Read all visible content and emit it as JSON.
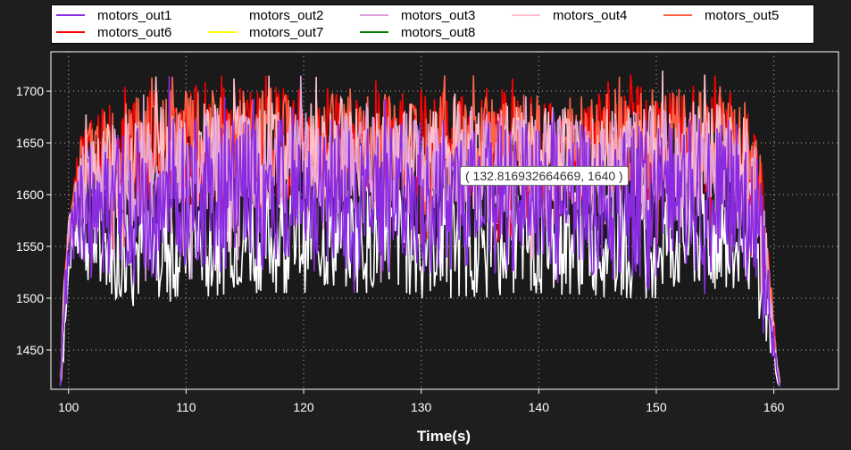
{
  "chart_data": {
    "type": "line",
    "xlabel": "Time(s)",
    "ylabel": "",
    "xlim": [
      98.5,
      165.5
    ],
    "ylim": [
      1412,
      1738
    ],
    "xticks": [
      100,
      110,
      120,
      130,
      140,
      150,
      160
    ],
    "yticks": [
      1450,
      1500,
      1550,
      1600,
      1650,
      1700
    ],
    "grid": true,
    "legend_position": "top",
    "series": [
      {
        "name": "motors_out1",
        "color": "#8a2be2"
      },
      {
        "name": "motors_out2",
        "color": "#ffffff"
      },
      {
        "name": "motors_out3",
        "color": "#dda0dd"
      },
      {
        "name": "motors_out4",
        "color": "#ffc0cb"
      },
      {
        "name": "motors_out5",
        "color": "#ff6347"
      },
      {
        "name": "motors_out6",
        "color": "#ff0000"
      },
      {
        "name": "motors_out7",
        "color": "#ffff00"
      },
      {
        "name": "motors_out8",
        "color": "#008000"
      }
    ],
    "envelope": {
      "x": [
        99.3,
        99.6,
        100.0,
        100.5,
        101.0,
        102.0,
        104.0,
        106.0,
        108.0,
        110.0,
        115.0,
        120.0,
        125.0,
        130.0,
        135.0,
        140.0,
        145.0,
        150.0,
        155.0,
        157.0,
        158.0,
        158.5,
        159.0,
        159.5,
        160.0,
        160.5
      ],
      "upper": [
        1430,
        1520,
        1580,
        1620,
        1660,
        1680,
        1690,
        1700,
        1705,
        1705,
        1705,
        1705,
        1700,
        1705,
        1705,
        1700,
        1700,
        1710,
        1705,
        1700,
        1690,
        1670,
        1630,
        1560,
        1480,
        1420
      ],
      "lower": [
        1412,
        1440,
        1520,
        1540,
        1520,
        1510,
        1500,
        1490,
        1495,
        1500,
        1505,
        1505,
        1505,
        1500,
        1500,
        1505,
        1500,
        1500,
        1505,
        1510,
        1500,
        1490,
        1470,
        1450,
        1430,
        1412
      ]
    },
    "crosshair": {
      "x": 132.816932664669,
      "y": 1640
    }
  },
  "tooltip_text": "( 132.816932664669, 1640 )"
}
